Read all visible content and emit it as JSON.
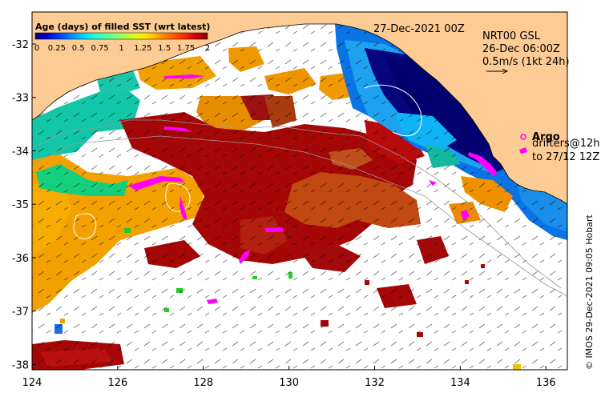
{
  "map": {
    "date_title": "27-Dec-2021 00Z",
    "xaxis": {
      "ticks": [
        "124",
        "126",
        "128",
        "130",
        "132",
        "134",
        "136"
      ],
      "range": [
        124,
        136.5
      ]
    },
    "yaxis": {
      "ticks": [
        "-32",
        "-33",
        "-34",
        "-35",
        "-36",
        "-37",
        "-38"
      ],
      "range": [
        -38.1,
        -31.4
      ]
    },
    "colorbar": {
      "title": "Age (days) of filled SST (wrt latest)",
      "ticks": [
        "0",
        "0.25",
        "0.5",
        "0.75",
        "1",
        "1.25",
        "1.5",
        "1.75",
        "2"
      ],
      "colors": [
        "#00007f",
        "#0000d0",
        "#0040ff",
        "#008cff",
        "#00d4ff",
        "#20ffd6",
        "#5cff9a",
        "#9aff5c",
        "#d6ff20",
        "#ffe600",
        "#ffa800",
        "#ff6a00",
        "#ff2c00",
        "#d00000",
        "#8c0000"
      ]
    },
    "current_legend": {
      "product": "NRT00 GSL",
      "time": "26-Dec 06:00Z",
      "scale": "0.5m/s (1kt 24h)"
    },
    "argo_label": "Argo",
    "drifters_label": "drifters@12h",
    "drifters_to": "to 27/12 12Z",
    "credit": "© IMOS 29-Dec-2021 09:05 Hobart",
    "colors": {
      "land": "#fdcb94",
      "ocean_blank": "#ffffff",
      "argo": "#ff00ff"
    }
  }
}
